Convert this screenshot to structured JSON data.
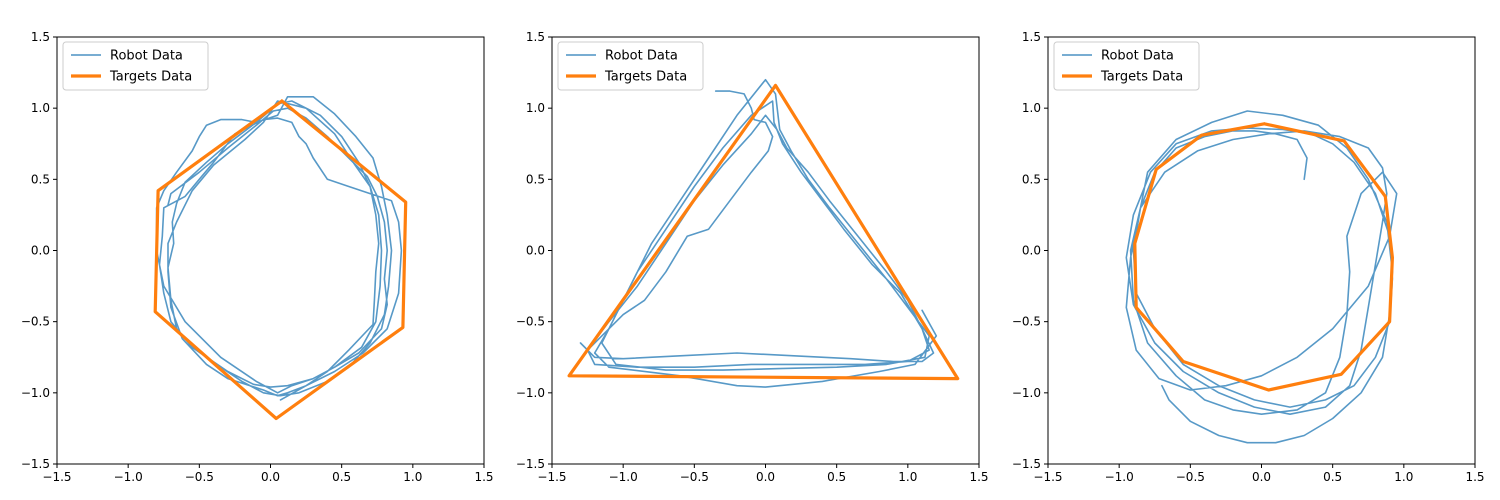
{
  "colors": {
    "robot": "#1f77b4",
    "targets": "#ff7f0e",
    "axes": "#000000",
    "legend_border": "#cccccc"
  },
  "chart_data": [
    {
      "type": "line",
      "title": "",
      "xlabel": "",
      "ylabel": "",
      "xlim": [
        -1.5,
        1.5
      ],
      "ylim": [
        -1.5,
        1.5
      ],
      "xticks": [
        "−1.5",
        "−1.0",
        "−0.5",
        "0.0",
        "0.5",
        "1.0",
        "1.5"
      ],
      "yticks": [
        "−1.5",
        "−1.0",
        "−0.5",
        "0.0",
        "0.5",
        "1.0",
        "1.5"
      ],
      "grid": false,
      "legend": {
        "placement": "upper-left",
        "entries": [
          "Robot Data",
          "Targets Data"
        ]
      },
      "series": [
        {
          "name": "Robot Data",
          "role": "robot",
          "x": [
            -0.72,
            -0.7,
            -0.5,
            -0.3,
            -0.1,
            0.02,
            0.12,
            0.25,
            0.4,
            0.55,
            0.68,
            0.75,
            0.8,
            0.82,
            0.8,
            0.82,
            0.78,
            0.62,
            0.45,
            0.3,
            0.12,
            0.0,
            -0.12,
            -0.3,
            -0.52,
            -0.66,
            -0.7,
            -0.72,
            -0.68,
            -0.69,
            -0.66,
            -0.6,
            -0.45,
            -0.3,
            -0.1,
            0.05,
            0.15,
            0.35,
            0.5,
            0.62,
            0.7,
            0.74,
            0.76,
            0.74,
            0.73,
            0.72,
            0.55,
            0.4,
            0.25,
            0.12,
            0.05,
            -0.05,
            -0.3,
            -0.45,
            -0.62,
            -0.7,
            -0.72,
            -0.72,
            -0.66,
            -0.55,
            -0.4,
            -0.18,
            -0.05,
            0.05,
            0.25,
            0.45,
            0.58,
            0.7,
            0.76,
            0.78,
            0.77,
            0.74,
            0.64,
            0.45,
            0.3,
            0.15,
            0.05,
            -0.1,
            -0.35,
            -0.6,
            -0.75,
            -0.8,
            -0.8,
            -0.75,
            -0.66,
            -0.55,
            -0.5,
            -0.45,
            -0.35,
            -0.2,
            -0.1,
            0.05,
            0.12,
            0.3,
            0.45,
            0.6,
            0.72,
            0.78,
            0.82,
            0.85,
            0.83,
            0.8,
            0.7,
            0.55,
            0.4,
            0.2,
            0.07,
            -0.05,
            -0.2,
            -0.35,
            -0.55,
            -0.7,
            -0.75,
            -0.78,
            -0.76,
            -0.75,
            -0.6,
            -0.5,
            -0.4,
            -0.25,
            -0.05,
            0.05,
            0.15,
            0.2,
            0.25,
            0.3,
            0.4,
            0.55,
            0.7,
            0.85,
            0.9,
            0.92,
            0.9,
            0.82,
            0.65,
            0.45,
            0.25,
            0.07
          ],
          "y": [
            0.32,
            0.4,
            0.55,
            0.72,
            0.88,
            0.98,
            1.0,
            0.93,
            0.8,
            0.65,
            0.52,
            0.38,
            0.2,
            0.0,
            -0.2,
            -0.38,
            -0.55,
            -0.72,
            -0.82,
            -0.9,
            -0.95,
            -0.96,
            -0.94,
            -0.85,
            -0.7,
            -0.55,
            -0.35,
            -0.12,
            0.05,
            0.2,
            0.33,
            0.48,
            0.62,
            0.75,
            0.9,
            1.03,
            1.05,
            0.95,
            0.8,
            0.62,
            0.45,
            0.25,
            0.05,
            -0.15,
            -0.35,
            -0.52,
            -0.7,
            -0.85,
            -0.95,
            -1.0,
            -1.02,
            -0.98,
            -0.9,
            -0.8,
            -0.62,
            -0.4,
            -0.15,
            0.05,
            0.2,
            0.42,
            0.6,
            0.78,
            0.9,
            1.05,
            1.0,
            0.82,
            0.62,
            0.45,
            0.25,
            0.0,
            -0.25,
            -0.5,
            -0.68,
            -0.82,
            -0.9,
            -0.95,
            -1.0,
            -0.92,
            -0.75,
            -0.5,
            -0.25,
            0.0,
            0.3,
            0.42,
            0.55,
            0.7,
            0.8,
            0.88,
            0.92,
            0.92,
            0.9,
            0.95,
            1.08,
            1.08,
            0.96,
            0.8,
            0.65,
            0.45,
            0.25,
            0.0,
            -0.25,
            -0.45,
            -0.65,
            -0.82,
            -0.92,
            -1.0,
            -1.02,
            -1.0,
            -0.92,
            -0.82,
            -0.68,
            -0.5,
            -0.3,
            -0.1,
            0.1,
            0.3,
            0.38,
            0.5,
            0.62,
            0.82,
            0.92,
            0.93,
            0.9,
            0.8,
            0.75,
            0.65,
            0.5,
            0.45,
            0.4,
            0.35,
            0.2,
            0.0,
            -0.3,
            -0.55,
            -0.72,
            -0.85,
            -0.95,
            -1.05
          ]
        },
        {
          "name": "Targets Data",
          "role": "targets",
          "x": [
            0.08,
            0.95,
            0.93,
            0.04,
            -0.81,
            -0.79,
            0.08
          ],
          "y": [
            1.05,
            0.34,
            -0.54,
            -1.18,
            -0.43,
            0.42,
            1.05
          ]
        }
      ]
    },
    {
      "type": "line",
      "title": "",
      "xlabel": "",
      "ylabel": "",
      "xlim": [
        -1.5,
        1.5
      ],
      "ylim": [
        -1.5,
        1.5
      ],
      "xticks": [
        "−1.5",
        "−1.0",
        "−0.5",
        "0.0",
        "0.5",
        "1.0",
        "1.5"
      ],
      "yticks": [
        "−1.5",
        "−1.0",
        "−0.5",
        "0.0",
        "0.5",
        "1.0",
        "1.5"
      ],
      "grid": false,
      "legend": {
        "placement": "upper-left",
        "entries": [
          "Robot Data",
          "Targets Data"
        ]
      },
      "series": [
        {
          "name": "Robot Data",
          "role": "robot",
          "x": [
            -0.35,
            -0.25,
            -0.15,
            -0.1,
            -0.08,
            0.0,
            0.05,
            0.02,
            -0.1,
            -0.25,
            -0.4,
            -0.55,
            -0.7,
            -0.85,
            -1.0,
            -1.15,
            -1.25,
            -1.3,
            -1.2,
            -1.0,
            -0.6,
            -0.2,
            0.2,
            0.6,
            0.9,
            1.1,
            1.18,
            1.1,
            1.0,
            0.85,
            0.65,
            0.45,
            0.3,
            0.15,
            0.08,
            0.0,
            -0.1,
            -0.3,
            -0.5,
            -0.7,
            -0.9,
            -1.1,
            -1.25,
            -1.2,
            -0.9,
            -0.5,
            -0.1,
            0.3,
            0.7,
            1.0,
            1.15,
            1.1,
            0.95,
            0.75,
            0.55,
            0.4,
            0.25,
            0.12,
            0.06,
            0.05,
            -0.1,
            -0.3,
            -0.5,
            -0.7,
            -0.9,
            -1.05,
            -1.15,
            -1.05,
            -0.7,
            -0.3,
            0.1,
            0.5,
            0.85,
            1.12,
            1.15,
            1.0,
            0.85,
            0.65,
            0.45,
            0.3,
            0.18,
            0.1,
            0.07,
            0.0,
            -0.2,
            -0.4,
            -0.6,
            -0.8,
            -0.95,
            -1.1,
            -1.2,
            -1.1,
            -0.6,
            -0.2,
            0.0,
            0.4,
            0.8,
            1.05,
            1.2,
            1.1
          ],
          "y": [
            1.12,
            1.12,
            1.1,
            1.0,
            0.92,
            0.9,
            0.8,
            0.7,
            0.55,
            0.35,
            0.15,
            0.1,
            -0.15,
            -0.35,
            -0.45,
            -0.6,
            -0.7,
            -0.65,
            -0.75,
            -0.76,
            -0.74,
            -0.72,
            -0.74,
            -0.76,
            -0.78,
            -0.78,
            -0.72,
            -0.55,
            -0.35,
            -0.15,
            0.1,
            0.35,
            0.55,
            0.72,
            0.85,
            0.95,
            0.82,
            0.6,
            0.35,
            0.05,
            -0.25,
            -0.5,
            -0.7,
            -0.8,
            -0.82,
            -0.82,
            -0.8,
            -0.8,
            -0.8,
            -0.78,
            -0.7,
            -0.55,
            -0.3,
            -0.1,
            0.15,
            0.35,
            0.55,
            0.75,
            0.9,
            1.05,
            0.95,
            0.72,
            0.45,
            0.15,
            -0.15,
            -0.45,
            -0.65,
            -0.8,
            -0.84,
            -0.84,
            -0.83,
            -0.82,
            -0.8,
            -0.75,
            -0.6,
            -0.4,
            -0.2,
            0.05,
            0.3,
            0.5,
            0.7,
            0.85,
            1.1,
            1.2,
            0.95,
            0.65,
            0.35,
            0.05,
            -0.25,
            -0.55,
            -0.72,
            -0.82,
            -0.88,
            -0.95,
            -0.96,
            -0.92,
            -0.85,
            -0.8,
            -0.6,
            -0.42
          ]
        },
        {
          "name": "Targets Data",
          "role": "targets",
          "x": [
            0.07,
            1.35,
            -1.38,
            0.07
          ],
          "y": [
            1.16,
            -0.9,
            -0.88,
            1.16
          ]
        }
      ]
    },
    {
      "type": "line",
      "title": "",
      "xlabel": "",
      "ylabel": "",
      "xlim": [
        -1.5,
        1.5
      ],
      "ylim": [
        -1.5,
        1.5
      ],
      "xticks": [
        "−1.5",
        "−1.0",
        "−0.5",
        "0.0",
        "0.5",
        "1.0",
        "1.5"
      ],
      "yticks": [
        "−1.5",
        "−1.0",
        "−0.5",
        "0.0",
        "0.5",
        "1.0",
        "1.5"
      ],
      "grid": false,
      "legend": {
        "placement": "upper-left",
        "entries": [
          "Robot Data",
          "Targets Data"
        ]
      },
      "series": [
        {
          "name": "Robot Data",
          "role": "robot",
          "x": [
            0.3,
            0.32,
            0.25,
            0.1,
            -0.05,
            -0.2,
            -0.4,
            -0.6,
            -0.75,
            -0.85,
            -0.9,
            -0.88,
            -0.75,
            -0.55,
            -0.3,
            -0.05,
            0.2,
            0.45,
            0.65,
            0.8,
            0.9,
            0.92,
            0.9,
            0.8,
            0.65,
            0.5,
            0.35,
            0.15,
            -0.1,
            -0.35,
            -0.6,
            -0.78,
            -0.9,
            -0.95,
            -0.9,
            -0.75,
            -0.55,
            -0.3,
            -0.05,
            0.2,
            0.45,
            0.62,
            0.7,
            0.75,
            0.8,
            0.85,
            0.88,
            0.85,
            0.75,
            0.55,
            0.3,
            0.05,
            -0.2,
            -0.45,
            -0.68,
            -0.85,
            -0.92,
            -0.9,
            -0.8,
            -0.6,
            -0.4,
            -0.2,
            0.0,
            0.25,
            0.45,
            0.55,
            0.6,
            0.62,
            0.6,
            0.7,
            0.85,
            0.95,
            0.9,
            0.75,
            0.5,
            0.25,
            0.0,
            -0.25,
            -0.5,
            -0.72,
            -0.88,
            -0.95,
            -0.92,
            -0.85,
            -0.8,
            -0.6,
            -0.35,
            -0.1,
            0.15,
            0.4,
            0.6,
            0.75,
            0.88,
            0.92,
            0.9,
            0.85,
            0.7,
            0.5,
            0.3,
            0.1,
            -0.1,
            -0.3,
            -0.5,
            -0.65,
            -0.7
          ],
          "y": [
            0.5,
            0.65,
            0.78,
            0.82,
            0.84,
            0.84,
            0.8,
            0.72,
            0.55,
            0.3,
            0.0,
            -0.3,
            -0.55,
            -0.8,
            -0.95,
            -1.05,
            -1.1,
            -1.05,
            -0.95,
            -0.75,
            -0.5,
            -0.2,
            0.1,
            0.4,
            0.62,
            0.75,
            0.82,
            0.85,
            0.86,
            0.84,
            0.75,
            0.55,
            0.25,
            -0.05,
            -0.38,
            -0.65,
            -0.85,
            -1.0,
            -1.1,
            -1.15,
            -1.1,
            -0.95,
            -0.7,
            -0.4,
            -0.1,
            0.2,
            0.4,
            0.58,
            0.72,
            0.8,
            0.84,
            0.82,
            0.78,
            0.7,
            0.55,
            0.3,
            0.0,
            -0.35,
            -0.65,
            -0.88,
            -1.05,
            -1.12,
            -1.15,
            -1.12,
            -1.0,
            -0.75,
            -0.45,
            -0.15,
            0.1,
            0.4,
            0.55,
            0.4,
            0.1,
            -0.25,
            -0.55,
            -0.75,
            -0.88,
            -0.95,
            -0.98,
            -0.9,
            -0.7,
            -0.4,
            -0.05,
            0.3,
            0.55,
            0.78,
            0.9,
            0.98,
            0.95,
            0.88,
            0.72,
            0.5,
            0.2,
            -0.15,
            -0.45,
            -0.75,
            -1.0,
            -1.18,
            -1.3,
            -1.35,
            -1.35,
            -1.3,
            -1.2,
            -1.05,
            -0.95
          ]
        },
        {
          "name": "Targets Data",
          "role": "targets",
          "x": [
            0.02,
            0.58,
            0.87,
            0.92,
            0.9,
            0.56,
            0.05,
            -0.55,
            -0.88,
            -0.89,
            -0.74,
            -0.42,
            0.02
          ],
          "y": [
            0.89,
            0.77,
            0.38,
            -0.05,
            -0.5,
            -0.87,
            -0.98,
            -0.78,
            -0.4,
            0.05,
            0.57,
            0.81,
            0.89
          ]
        }
      ]
    }
  ]
}
